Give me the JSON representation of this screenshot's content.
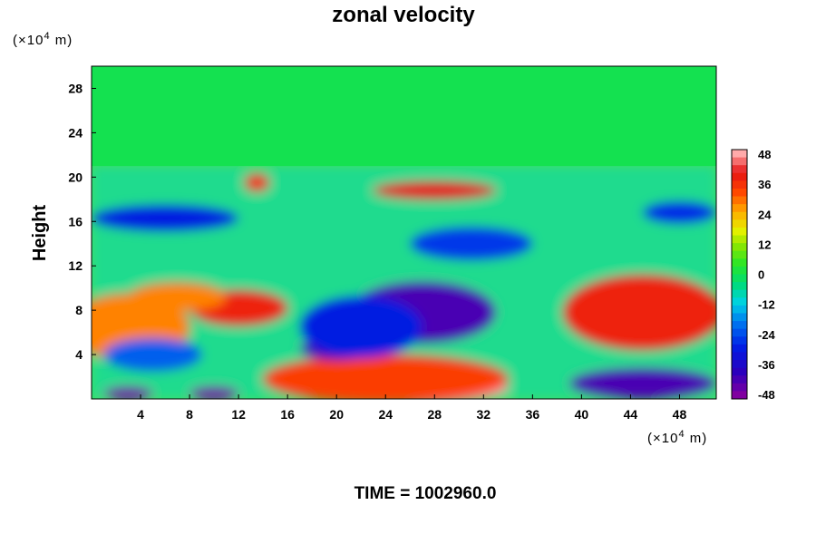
{
  "chart_data": {
    "type": "heatmap",
    "title": "zonal velocity",
    "ylabel": "Height",
    "xlabel": "",
    "x_unit": {
      "pre": "(×10",
      "exp": "4",
      "post": " m)"
    },
    "y_unit": {
      "pre": "(×10",
      "exp": "4",
      "post": " m)"
    },
    "xlim": [
      0,
      51
    ],
    "ylim": [
      0,
      30
    ],
    "x_ticks": [
      4,
      8,
      12,
      16,
      20,
      24,
      28,
      32,
      36,
      40,
      44,
      48
    ],
    "y_ticks": [
      4,
      8,
      12,
      16,
      20,
      24,
      28
    ],
    "colorbar": {
      "range": [
        -48,
        48
      ],
      "ticks": [
        48,
        36,
        24,
        12,
        0,
        -12,
        -24,
        -36,
        -48
      ],
      "levels": 32,
      "colormap": "rainbow (purple-blue-cyan-green-yellow-red-pink)"
    },
    "features": [
      {
        "x": 27,
        "y": 1.0,
        "value": 48,
        "rx": 7,
        "ry": 1.4
      },
      {
        "x": 24,
        "y": 1.8,
        "value": 34,
        "rx": 10,
        "ry": 2.2
      },
      {
        "x": 1,
        "y": 6.5,
        "value": 40,
        "rx": 2.5,
        "ry": 2.5
      },
      {
        "x": 3,
        "y": 6.5,
        "value": 28,
        "rx": 5,
        "ry": 3
      },
      {
        "x": 12,
        "y": 8.2,
        "value": 38,
        "rx": 4,
        "ry": 1.6
      },
      {
        "x": 7,
        "y": 9.2,
        "value": 28,
        "rx": 4,
        "ry": 1.3
      },
      {
        "x": 46,
        "y": 7.8,
        "value": 52,
        "rx": 4,
        "ry": 2.4
      },
      {
        "x": 45,
        "y": 7.8,
        "value": 38,
        "rx": 6.5,
        "ry": 3.4
      },
      {
        "x": 28,
        "y": 18.8,
        "value": 40,
        "rx": 5,
        "ry": 0.8
      },
      {
        "x": 13.5,
        "y": 19.5,
        "value": 36,
        "rx": 1,
        "ry": 0.8
      },
      {
        "x": 27,
        "y": 7.8,
        "value": -42,
        "rx": 6,
        "ry": 2.8
      },
      {
        "x": 20,
        "y": 4.5,
        "value": -42,
        "rx": 3,
        "ry": 1.0
      },
      {
        "x": 22,
        "y": 6.5,
        "value": -30,
        "rx": 5,
        "ry": 2.8
      },
      {
        "x": 45,
        "y": 1.4,
        "value": -42,
        "rx": 6,
        "ry": 1.4
      },
      {
        "x": 3,
        "y": 0.5,
        "value": -46,
        "rx": 2,
        "ry": 0.6
      },
      {
        "x": 10,
        "y": 0.5,
        "value": -46,
        "rx": 2,
        "ry": 0.6
      },
      {
        "x": 6,
        "y": 16.3,
        "value": -30,
        "rx": 6,
        "ry": 1.2
      },
      {
        "x": 31,
        "y": 14.0,
        "value": -26,
        "rx": 5,
        "ry": 1.5
      },
      {
        "x": 48,
        "y": 16.8,
        "value": -28,
        "rx": 3,
        "ry": 1.0
      },
      {
        "x": 5,
        "y": 4.0,
        "value": -22,
        "rx": 4,
        "ry": 1.5
      }
    ],
    "top_region": {
      "y_above": 21,
      "value": 0
    }
  },
  "footer": {
    "time_label": "TIME = 1002960.0"
  }
}
